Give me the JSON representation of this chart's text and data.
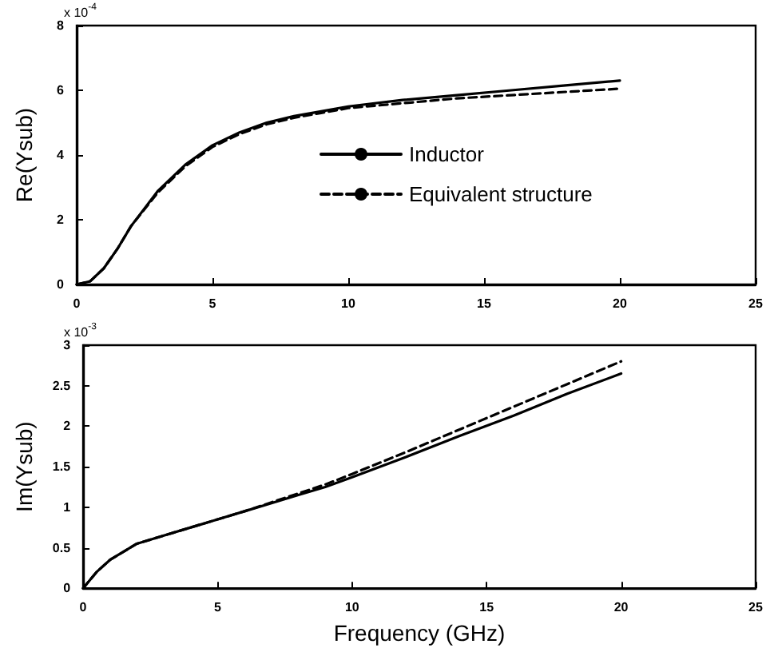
{
  "chart_data": [
    {
      "type": "line",
      "ylabel": "Re(Ysub)",
      "annotations": [
        "x 10$^{-4}$"
      ],
      "xlim": [
        0,
        25
      ],
      "xticks": [
        0,
        5,
        10,
        15,
        20,
        25
      ],
      "ylim": [
        0,
        8
      ],
      "yticks": [
        0,
        2,
        4,
        6,
        8
      ],
      "grid": false,
      "legend": "right",
      "marker": "none",
      "x": [
        0,
        0.5,
        1,
        1.5,
        2,
        3,
        4,
        5,
        6,
        7,
        8,
        9,
        10,
        12,
        14,
        16,
        18,
        20
      ],
      "series": [
        {
          "name": "Inductor",
          "color": "#000000",
          "line_style": "solid",
          "values": [
            0,
            0.1,
            0.5,
            1.1,
            1.8,
            2.9,
            3.7,
            4.3,
            4.7,
            5.0,
            5.2,
            5.35,
            5.5,
            5.7,
            5.85,
            6.0,
            6.15,
            6.3
          ]
        },
        {
          "name": "Equivalent structure",
          "color": "#000000",
          "line_style": "dashed",
          "values": [
            0,
            0.1,
            0.5,
            1.1,
            1.8,
            2.85,
            3.65,
            4.25,
            4.65,
            4.95,
            5.15,
            5.3,
            5.45,
            5.6,
            5.75,
            5.85,
            5.95,
            6.05
          ]
        }
      ]
    },
    {
      "type": "line",
      "xlabel": "Frequency (GHz)",
      "ylabel": "Im(Ysub)",
      "annotations": [
        "x 10$^{-3}$"
      ],
      "xlim": [
        0,
        25
      ],
      "xticks": [
        0,
        5,
        10,
        15,
        20,
        25
      ],
      "ylim": [
        0,
        3
      ],
      "yticks": [
        0,
        0.5,
        1,
        1.5,
        2,
        2.5,
        3
      ],
      "grid": false,
      "marker": "none",
      "x": [
        0,
        0.5,
        1,
        2,
        3,
        4,
        5,
        6,
        7,
        8,
        9,
        10,
        12,
        14,
        16,
        18,
        20
      ],
      "series": [
        {
          "color": "#000000",
          "line_style": "solid",
          "values": [
            0,
            0.2,
            0.35,
            0.55,
            0.65,
            0.75,
            0.85,
            0.95,
            1.05,
            1.15,
            1.25,
            1.37,
            1.62,
            1.88,
            2.13,
            2.4,
            2.65
          ]
        },
        {
          "color": "#000000",
          "line_style": "dashed",
          "values": [
            0,
            0.2,
            0.35,
            0.55,
            0.65,
            0.75,
            0.85,
            0.95,
            1.06,
            1.17,
            1.28,
            1.41,
            1.68,
            1.96,
            2.24,
            2.52,
            2.8
          ]
        }
      ]
    }
  ]
}
